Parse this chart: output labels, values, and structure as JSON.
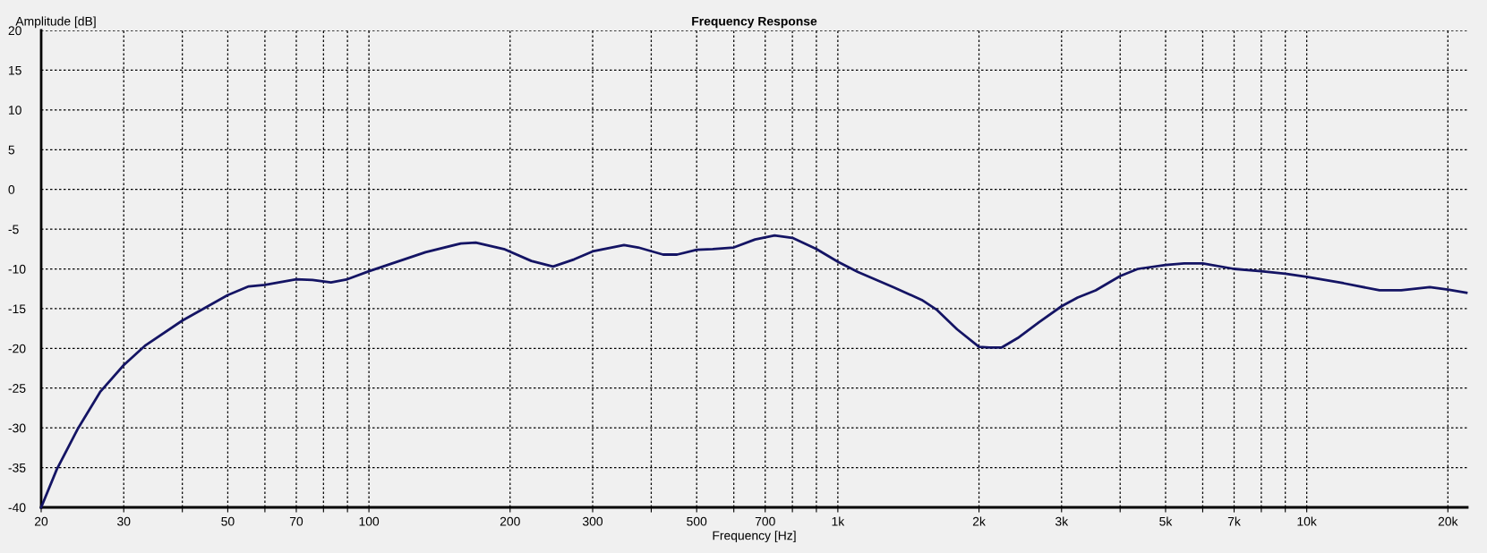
{
  "chart_data": {
    "type": "line",
    "title": "Frequency Response",
    "xlabel": "Frequency [Hz]",
    "ylabel": "Amplitude [dB]",
    "log": "x",
    "grid": true,
    "legend": false,
    "line_style": "solid",
    "xlim": [
      20,
      22000
    ],
    "ylim": [
      -40,
      20
    ],
    "xticks": [
      20,
      30,
      {
        "value": 40,
        "label": null
      },
      50,
      {
        "value": 60,
        "label": null
      },
      70,
      {
        "value": 80,
        "label": null
      },
      {
        "value": 90,
        "label": null
      },
      100,
      200,
      300,
      {
        "value": 400,
        "label": null
      },
      500,
      {
        "value": 600,
        "label": null
      },
      700,
      {
        "value": 800,
        "label": null
      },
      {
        "value": 900,
        "label": null
      },
      {
        "value": 1000,
        "label": "1k"
      },
      {
        "value": 2000,
        "label": "2k"
      },
      {
        "value": 3000,
        "label": "3k"
      },
      {
        "value": 4000,
        "label": null
      },
      {
        "value": 5000,
        "label": "5k"
      },
      {
        "value": 6000,
        "label": null
      },
      {
        "value": 7000,
        "label": "7k"
      },
      {
        "value": 8000,
        "label": null
      },
      {
        "value": 9000,
        "label": null
      },
      {
        "value": 10000,
        "label": "10k"
      },
      {
        "value": 20000,
        "label": "20k"
      }
    ],
    "yticks": [
      20,
      15,
      10,
      5,
      0,
      -5,
      -10,
      -15,
      -20,
      -25,
      -30,
      -35,
      -40
    ],
    "series": [
      {
        "color": "#141464",
        "x": [
          20,
          21.6,
          24,
          26.7,
          30,
          33.4,
          40,
          50,
          55.4,
          60,
          70,
          75.8,
          83,
          90,
          100,
          111,
          132,
          157,
          169,
          194,
          222,
          247,
          274,
          300,
          350,
          375,
          424,
          454,
          500,
          541,
          600,
          666,
          733,
          800,
          900,
          1000,
          1104,
          1314,
          1510,
          1622,
          1796,
          2000,
          2103,
          2233,
          2419,
          2685,
          3000,
          3247,
          3547,
          4000,
          4364,
          5000,
          5477,
          6000,
          7000,
          8000,
          9000,
          10000,
          11975,
          14295,
          15900,
          18300,
          20000,
          21900
        ],
        "values": [
          -40,
          -35.2,
          -30.0,
          -25.5,
          -22.1,
          -19.6,
          -16.5,
          -13.3,
          -12.2,
          -12.0,
          -11.3,
          -11.4,
          -11.7,
          -11.3,
          -10.3,
          -9.4,
          -7.9,
          -6.8,
          -6.7,
          -7.5,
          -9.0,
          -9.7,
          -8.8,
          -7.8,
          -7.0,
          -7.3,
          -8.2,
          -8.2,
          -7.6,
          -7.5,
          -7.3,
          -6.3,
          -5.8,
          -6.1,
          -7.5,
          -9.1,
          -10.4,
          -12.3,
          -13.9,
          -15.1,
          -17.6,
          -19.8,
          -19.9,
          -19.9,
          -18.7,
          -16.7,
          -14.7,
          -13.6,
          -12.7,
          -10.9,
          -10.0,
          -9.5,
          -9.3,
          -9.3,
          -10.0,
          -10.3,
          -10.6,
          -11.0,
          -11.8,
          -12.7,
          -12.7,
          -12.3,
          -12.6,
          -13.0
        ]
      }
    ]
  }
}
